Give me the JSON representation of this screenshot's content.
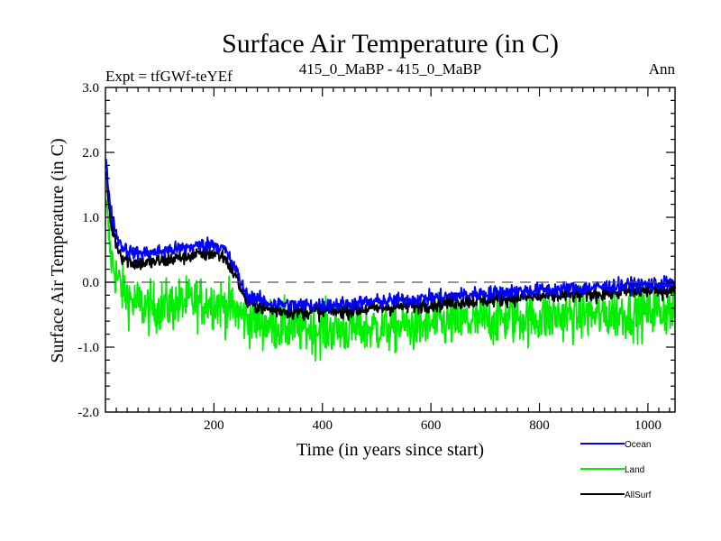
{
  "chart_data": {
    "type": "line",
    "title": "Surface Air Temperature (in C)",
    "subtitle_left": "Expt = tfGWf-teYEf",
    "subtitle_center": "415_0_MaBP - 415_0_MaBP",
    "subtitle_right": "Ann",
    "xlabel": "Time (in years since start)",
    "ylabel": "Surface Air Temperature (in C)",
    "xlim": [
      0,
      1050
    ],
    "ylim": [
      -2.0,
      3.0
    ],
    "x_ticks": [
      200,
      400,
      600,
      800,
      1000
    ],
    "x_tick_labels": [
      "200",
      "400",
      "600",
      "800",
      "1000"
    ],
    "y_ticks": [
      -2.0,
      -1.0,
      0.0,
      1.0,
      2.0,
      3.0
    ],
    "y_tick_labels": [
      "-2.0",
      "-1.0",
      "0.0",
      "1.0",
      "2.0",
      "3.0"
    ],
    "reference_line": 0.0,
    "legend_position": "bottom-right outside",
    "series": [
      {
        "name": "Land",
        "color": "#00ee00",
        "x": [
          0,
          5,
          10,
          20,
          30,
          50,
          80,
          120,
          160,
          200,
          230,
          260,
          300,
          350,
          400,
          450,
          500,
          550,
          600,
          650,
          700,
          750,
          800,
          850,
          900,
          950,
          1000,
          1050
        ],
        "values": [
          1.4,
          0.8,
          0.4,
          0.1,
          -0.1,
          -0.3,
          -0.4,
          -0.35,
          -0.3,
          -0.3,
          -0.4,
          -0.55,
          -0.65,
          -0.7,
          -0.72,
          -0.72,
          -0.7,
          -0.68,
          -0.65,
          -0.62,
          -0.58,
          -0.55,
          -0.55,
          -0.5,
          -0.5,
          -0.48,
          -0.45,
          -0.42
        ]
      },
      {
        "name": "AllSurf",
        "color": "#000000",
        "x": [
          0,
          5,
          10,
          20,
          30,
          50,
          80,
          120,
          160,
          200,
          220,
          240,
          260,
          300,
          350,
          400,
          450,
          500,
          550,
          600,
          650,
          700,
          750,
          800,
          850,
          900,
          950,
          1000,
          1050
        ],
        "values": [
          1.8,
          1.3,
          0.9,
          0.6,
          0.4,
          0.3,
          0.3,
          0.35,
          0.42,
          0.45,
          0.38,
          0.1,
          -0.3,
          -0.42,
          -0.45,
          -0.45,
          -0.43,
          -0.4,
          -0.37,
          -0.34,
          -0.3,
          -0.27,
          -0.24,
          -0.22,
          -0.2,
          -0.18,
          -0.15,
          -0.13,
          -0.12
        ]
      },
      {
        "name": "Ocean",
        "color": "#0000ff",
        "x": [
          0,
          5,
          10,
          20,
          30,
          50,
          80,
          120,
          160,
          200,
          220,
          240,
          260,
          300,
          350,
          400,
          450,
          500,
          550,
          600,
          650,
          700,
          750,
          800,
          850,
          900,
          950,
          1000,
          1050
        ],
        "values": [
          2.0,
          1.5,
          1.1,
          0.75,
          0.55,
          0.45,
          0.45,
          0.5,
          0.55,
          0.6,
          0.5,
          0.2,
          -0.2,
          -0.32,
          -0.35,
          -0.35,
          -0.33,
          -0.3,
          -0.27,
          -0.24,
          -0.2,
          -0.17,
          -0.14,
          -0.12,
          -0.1,
          -0.08,
          -0.05,
          -0.03,
          -0.02
        ]
      }
    ]
  }
}
